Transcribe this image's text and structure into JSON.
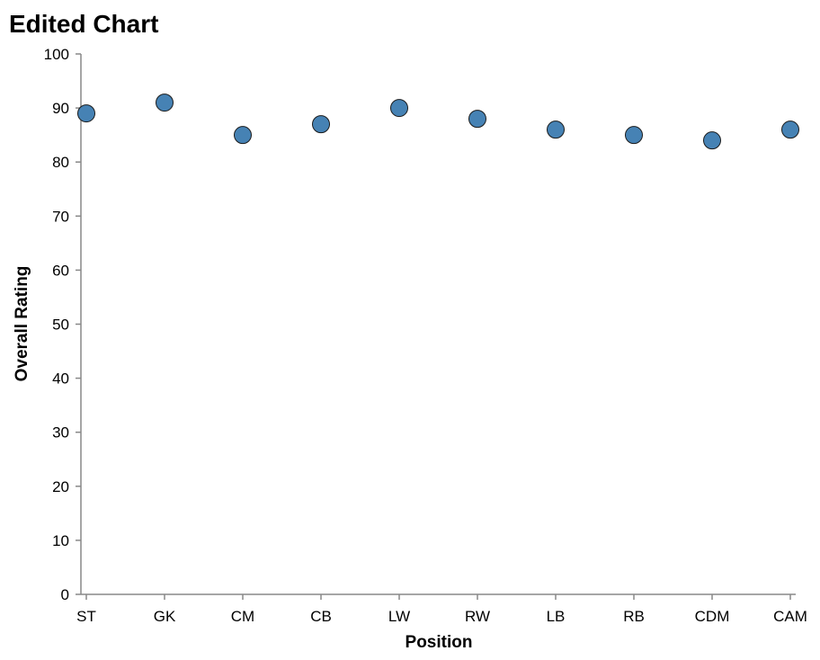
{
  "chart_data": {
    "type": "scatter",
    "title": "Edited Chart",
    "xlabel": "Position",
    "ylabel": "Overall Rating",
    "categories": [
      "ST",
      "GK",
      "CM",
      "CB",
      "LW",
      "RW",
      "LB",
      "RB",
      "CDM",
      "CAM"
    ],
    "values": [
      89,
      91,
      85,
      87,
      90,
      88,
      86,
      85,
      84,
      86
    ],
    "ylim": [
      0,
      100
    ],
    "yticks": [
      0,
      10,
      20,
      30,
      40,
      50,
      60,
      70,
      80,
      90,
      100
    ],
    "grid": false,
    "colors": {
      "point_fill": "#4682b4",
      "point_stroke": "#1a1a1a",
      "axis": "#888888"
    }
  }
}
